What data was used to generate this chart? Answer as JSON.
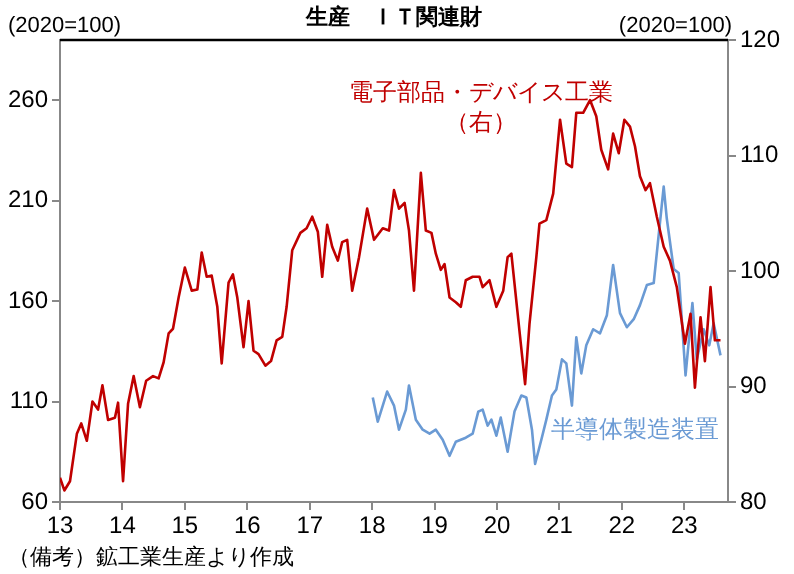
{
  "chart_data": {
    "type": "line",
    "title": "生産　ＩＴ関連財",
    "ylabel": "(2020=100)",
    "y2label": "(2020=100)",
    "annotations": [
      "（備考）鉱工業生産より作成"
    ],
    "xlim": [
      2013,
      2023.7
    ],
    "xticks": [
      {
        "value": 2013,
        "label": "13"
      },
      {
        "value": 2014,
        "label": "14"
      },
      {
        "value": 2015,
        "label": "15"
      },
      {
        "value": 2016,
        "label": "16"
      },
      {
        "value": 2017,
        "label": "17"
      },
      {
        "value": 2018,
        "label": "18"
      },
      {
        "value": 2019,
        "label": "19"
      },
      {
        "value": 2020,
        "label": "20"
      },
      {
        "value": 2021,
        "label": "21"
      },
      {
        "value": 2022,
        "label": "22"
      },
      {
        "value": 2023,
        "label": "23"
      }
    ],
    "ylim": [
      60,
      290
    ],
    "yticks": [
      60,
      110,
      160,
      210,
      260
    ],
    "y2lim": [
      80,
      120
    ],
    "y2ticks": [
      80,
      90,
      100,
      110,
      120
    ],
    "grid": false,
    "legend": false,
    "marker": "none",
    "line_style": "solid",
    "series": [
      {
        "name": "電子部品・デバイス工業（右）",
        "color": "#c00000",
        "axis": "y2",
        "x": [
          2013.0,
          2013.07,
          2013.16,
          2013.27,
          2013.34,
          2013.43,
          2013.52,
          2013.61,
          2013.68,
          2013.77,
          2013.88,
          2013.93,
          2014.01,
          2014.09,
          2014.18,
          2014.28,
          2014.38,
          2014.49,
          2014.58,
          2014.66,
          2014.74,
          2014.81,
          2014.9,
          2015.0,
          2015.11,
          2015.2,
          2015.27,
          2015.35,
          2015.43,
          2015.52,
          2015.59,
          2015.7,
          2015.77,
          2015.84,
          2015.94,
          2016.02,
          2016.1,
          2016.18,
          2016.29,
          2016.38,
          2016.47,
          2016.56,
          2016.63,
          2016.72,
          2016.85,
          2016.95,
          2017.04,
          2017.13,
          2017.2,
          2017.28,
          2017.36,
          2017.45,
          2017.52,
          2017.6,
          2017.68,
          2017.79,
          2017.92,
          2018.03,
          2018.17,
          2018.27,
          2018.35,
          2018.43,
          2018.52,
          2018.59,
          2018.67,
          2018.78,
          2018.86,
          2018.95,
          2019.02,
          2019.1,
          2019.16,
          2019.24,
          2019.34,
          2019.42,
          2019.5,
          2019.61,
          2019.72,
          2019.77,
          2019.88,
          2019.99,
          2020.1,
          2020.17,
          2020.23,
          2020.36,
          2020.45,
          2020.52,
          2020.63,
          2020.68,
          2020.79,
          2020.9,
          2021.01,
          2021.11,
          2021.2,
          2021.27,
          2021.38,
          2021.49,
          2021.59,
          2021.67,
          2021.78,
          2021.86,
          2021.95,
          2022.04,
          2022.13,
          2022.21,
          2022.29,
          2022.38,
          2022.45,
          2022.56,
          2022.67,
          2022.77,
          2022.88,
          2023.01,
          2023.1,
          2023.17,
          2023.26,
          2023.33,
          2023.42,
          2023.49,
          2023.58
        ],
        "values": [
          82.1,
          81.0,
          81.8,
          85.9,
          86.8,
          85.3,
          88.7,
          88.0,
          90.1,
          87.1,
          87.3,
          88.6,
          81.8,
          88.5,
          90.9,
          88.2,
          90.5,
          90.9,
          90.7,
          92.1,
          94.6,
          95.0,
          97.7,
          100.3,
          98.3,
          98.4,
          101.6,
          99.5,
          99.6,
          96.9,
          92.0,
          99.0,
          99.7,
          97.7,
          93.4,
          97.4,
          93.1,
          92.8,
          91.8,
          92.2,
          94.0,
          94.3,
          96.9,
          101.8,
          103.3,
          103.7,
          104.7,
          103.4,
          99.5,
          104.0,
          102.1,
          100.9,
          102.5,
          102.7,
          98.3,
          101.2,
          105.4,
          102.7,
          103.7,
          103.5,
          107.0,
          105.4,
          105.9,
          103.5,
          98.3,
          108.5,
          103.5,
          103.3,
          101.5,
          100.1,
          100.6,
          97.7,
          97.3,
          96.9,
          99.2,
          99.5,
          99.5,
          98.6,
          99.2,
          96.9,
          98.3,
          101.2,
          101.5,
          94.8,
          90.2,
          95.4,
          101.2,
          104.1,
          104.4,
          106.7,
          113.1,
          109.3,
          109.0,
          113.7,
          113.7,
          114.8,
          113.4,
          110.5,
          108.8,
          111.9,
          110.2,
          113.1,
          112.5,
          110.8,
          108.2,
          107.0,
          107.6,
          104.7,
          102.1,
          100.9,
          98.6,
          93.7,
          96.3,
          89.9,
          96.0,
          92.2,
          98.6,
          94.0,
          94.0
        ]
      },
      {
        "name": "半導体製造装置",
        "color": "#6a9ad4",
        "axis": "y",
        "x": [
          2018.01,
          2018.09,
          2018.24,
          2018.35,
          2018.43,
          2018.54,
          2018.59,
          2018.7,
          2018.81,
          2018.92,
          2019.02,
          2019.13,
          2019.24,
          2019.34,
          2019.5,
          2019.61,
          2019.7,
          2019.77,
          2019.85,
          2019.91,
          2019.99,
          2020.06,
          2020.17,
          2020.28,
          2020.39,
          2020.47,
          2020.56,
          2020.61,
          2020.71,
          2020.79,
          2020.88,
          2020.95,
          2021.04,
          2021.11,
          2021.2,
          2021.27,
          2021.35,
          2021.43,
          2021.54,
          2021.65,
          2021.76,
          2021.86,
          2021.97,
          2022.08,
          2022.19,
          2022.29,
          2022.4,
          2022.51,
          2022.67,
          2022.72,
          2022.83,
          2022.91,
          2023.02,
          2023.13,
          2023.2,
          2023.31,
          2023.4,
          2023.47,
          2023.58
        ],
        "values": [
          112,
          100,
          115,
          108,
          96,
          106,
          118,
          101,
          96,
          94,
          96,
          91,
          83,
          90,
          92,
          94,
          105,
          106,
          98,
          101,
          93,
          102,
          85,
          105,
          113,
          112,
          96,
          79,
          91,
          101,
          113,
          116,
          131,
          129,
          108,
          142,
          124,
          138,
          146,
          144,
          153,
          178,
          154,
          147,
          151,
          158,
          168,
          169,
          217,
          201,
          176,
          174,
          123,
          159,
          131,
          146,
          138,
          149,
          133
        ]
      }
    ]
  }
}
